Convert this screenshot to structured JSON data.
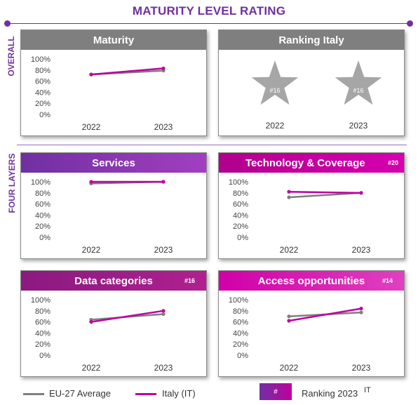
{
  "title": "MATURITY LEVEL RATING",
  "side_labels": {
    "overall": "OVERALL",
    "layers": "FOUR LAYERS"
  },
  "colors": {
    "eu": "#7f7f7f",
    "it": "#c000a0",
    "grey_header": "#7f7f7f",
    "purple": "#7030a0",
    "magenta": "#c000a0",
    "dark_magenta": "#9e1f8a"
  },
  "ranking": {
    "title": "Ranking  Italy",
    "stars": [
      {
        "year": "2022",
        "rank": "#16"
      },
      {
        "year": "2023",
        "rank": "#16"
      }
    ]
  },
  "legend": {
    "eu": "EU-27 Average",
    "it": "Italy (IT)",
    "badge": "#",
    "ranking": "Ranking 2023",
    "ranking_suffix": "IT"
  },
  "chart_data": [
    {
      "id": "maturity",
      "type": "line",
      "title": "Maturity",
      "badge": "",
      "x": [
        "2022",
        "2023"
      ],
      "ylim": [
        0,
        100
      ],
      "yticks": [
        "0%",
        "20%",
        "40%",
        "60%",
        "80%",
        "100%"
      ],
      "series": [
        {
          "name": "EU-27 Average",
          "values": [
            72,
            79
          ]
        },
        {
          "name": "Italy (IT)",
          "values": [
            72,
            83
          ]
        }
      ]
    },
    {
      "id": "services",
      "type": "line",
      "title": "Services",
      "badge": "",
      "x": [
        "2022",
        "2023"
      ],
      "ylim": [
        0,
        100
      ],
      "yticks": [
        "0%",
        "20%",
        "40%",
        "60%",
        "80%",
        "100%"
      ],
      "series": [
        {
          "name": "EU-27 Average",
          "values": [
            97,
            100
          ]
        },
        {
          "name": "Italy (IT)",
          "values": [
            100,
            100
          ]
        }
      ]
    },
    {
      "id": "technology",
      "type": "line",
      "title": "Technology & Coverage",
      "badge": "#20",
      "x": [
        "2022",
        "2023"
      ],
      "ylim": [
        0,
        100
      ],
      "yticks": [
        "0%",
        "20%",
        "40%",
        "60%",
        "80%",
        "100%"
      ],
      "series": [
        {
          "name": "EU-27 Average",
          "values": [
            72,
            80
          ]
        },
        {
          "name": "Italy (IT)",
          "values": [
            82,
            80
          ]
        }
      ]
    },
    {
      "id": "data",
      "type": "line",
      "title": "Data categories",
      "badge": "#16",
      "x": [
        "2022",
        "2023"
      ],
      "ylim": [
        0,
        100
      ],
      "yticks": [
        "0%",
        "20%",
        "40%",
        "60%",
        "80%",
        "100%"
      ],
      "series": [
        {
          "name": "EU-27 Average",
          "values": [
            64,
            74
          ]
        },
        {
          "name": "Italy (IT)",
          "values": [
            60,
            80
          ]
        }
      ]
    },
    {
      "id": "access",
      "type": "line",
      "title": "Access opportunities",
      "badge": "#14",
      "x": [
        "2022",
        "2023"
      ],
      "ylim": [
        0,
        100
      ],
      "yticks": [
        "0%",
        "20%",
        "40%",
        "60%",
        "80%",
        "100%"
      ],
      "series": [
        {
          "name": "EU-27 Average",
          "values": [
            70,
            77
          ]
        },
        {
          "name": "Italy (IT)",
          "values": [
            62,
            84
          ]
        }
      ]
    }
  ]
}
